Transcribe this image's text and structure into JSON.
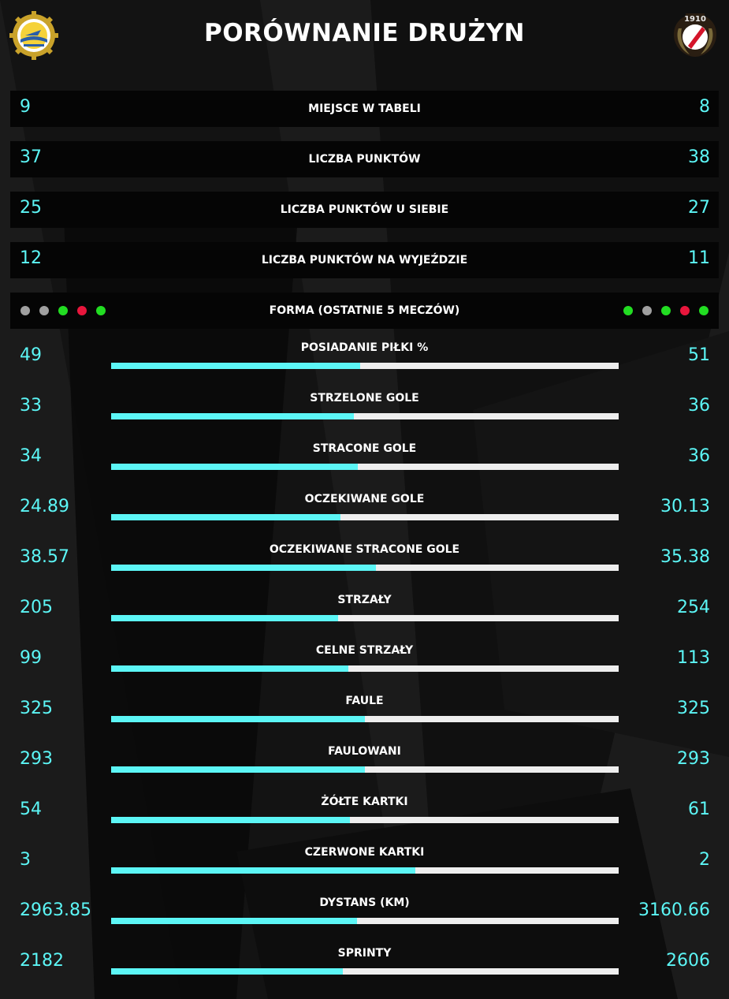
{
  "header": {
    "title": "PORÓWNANIE DRUŻYN",
    "left_crest_icon": "club-crest-left-icon",
    "right_crest_icon": "club-crest-right-icon",
    "right_crest_text": "1910"
  },
  "colors": {
    "accent": "#5cf6f6",
    "track": "#eeeeee",
    "win": "#22dd22",
    "draw": "#a0a0a0",
    "loss": "#e8163c"
  },
  "summary": [
    {
      "label": "MIEJSCE W TABELI",
      "left": "9",
      "right": "8"
    },
    {
      "label": "LICZBA PUNKTÓW",
      "left": "37",
      "right": "38"
    },
    {
      "label": "LICZBA PUNKTÓW U SIEBIE",
      "left": "25",
      "right": "27"
    },
    {
      "label": "LICZBA PUNKTÓW NA WYJEŹDZIE",
      "left": "12",
      "right": "11"
    }
  ],
  "form": {
    "label": "FORMA (OSTATNIE 5 MECZÓW)",
    "left": [
      "draw",
      "draw",
      "win",
      "loss",
      "win"
    ],
    "right": [
      "win",
      "draw",
      "win",
      "loss",
      "win"
    ]
  },
  "stats": [
    {
      "label": "POSIADANIE PIŁKI %",
      "left": "49",
      "right": "51",
      "share": 0.49
    },
    {
      "label": "STRZELONE GOLE",
      "left": "33",
      "right": "36",
      "share": 0.478
    },
    {
      "label": "STRACONE GOLE",
      "left": "34",
      "right": "36",
      "share": 0.486
    },
    {
      "label": "OCZEKIWANE GOLE",
      "left": "24.89",
      "right": "30.13",
      "share": 0.452
    },
    {
      "label": "OCZEKIWANE STRACONE GOLE",
      "left": "38.57",
      "right": "35.38",
      "share": 0.522
    },
    {
      "label": "STRZAŁY",
      "left": "205",
      "right": "254",
      "share": 0.447
    },
    {
      "label": "CELNE STRZAŁY",
      "left": "99",
      "right": "113",
      "share": 0.467
    },
    {
      "label": "FAULE",
      "left": "325",
      "right": "325",
      "share": 0.5
    },
    {
      "label": "FAULOWANI",
      "left": "293",
      "right": "293",
      "share": 0.5
    },
    {
      "label": "ŻÓŁTE KARTKI",
      "left": "54",
      "right": "61",
      "share": 0.47
    },
    {
      "label": "CZERWONE KARTKI",
      "left": "3",
      "right": "2",
      "share": 0.6
    },
    {
      "label": "DYSTANS (KM)",
      "left": "2963.85",
      "right": "3160.66",
      "share": 0.484
    },
    {
      "label": "SPRINTY",
      "left": "2182",
      "right": "2606",
      "share": 0.456
    }
  ]
}
